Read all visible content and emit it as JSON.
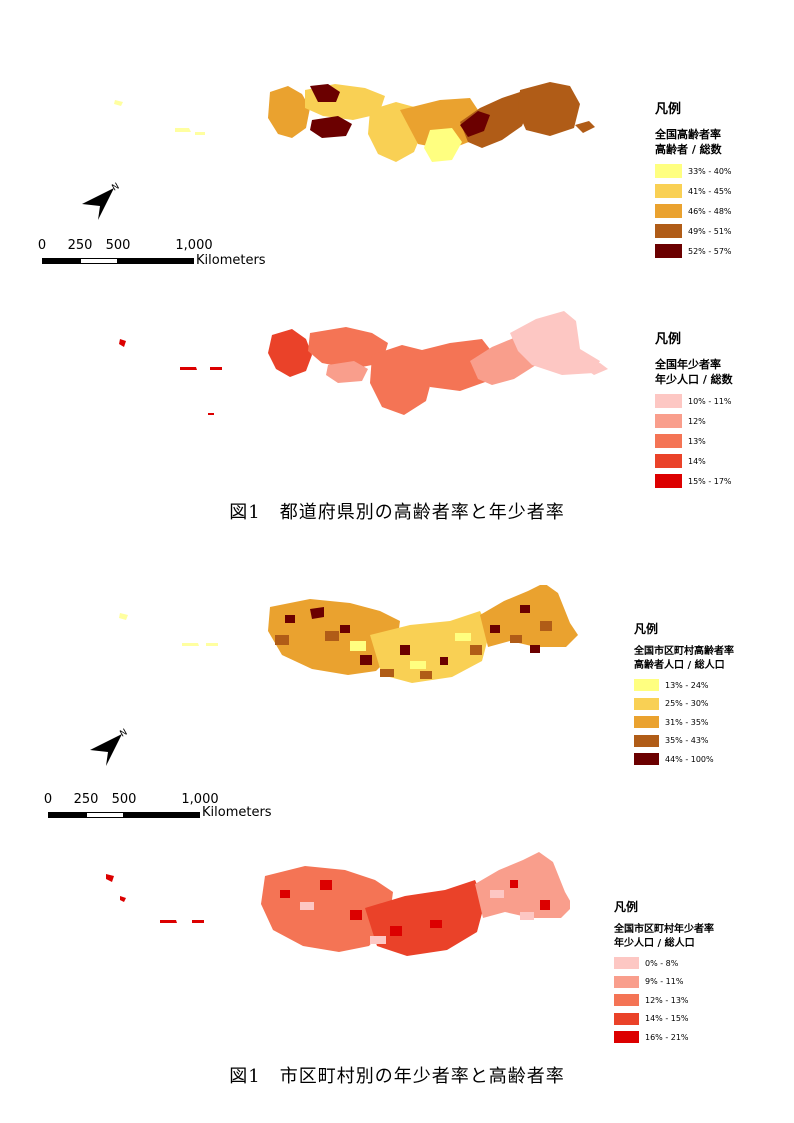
{
  "maps": [
    {
      "legend": {
        "title": "凡例",
        "subtitle_1": "全国高齢者率",
        "subtitle_2": "高齢者 / 総数",
        "classes": [
          {
            "label": "33% - 40%",
            "color": "#ffff80"
          },
          {
            "label": "41% - 45%",
            "color": "#f9d054"
          },
          {
            "label": "46% - 48%",
            "color": "#eaa22f"
          },
          {
            "label": "49% - 51%",
            "color": "#b05c17"
          },
          {
            "label": "52% - 57%",
            "color": "#6b0000"
          }
        ]
      }
    },
    {
      "legend": {
        "title": "凡例",
        "subtitle_1": "全国年少者率",
        "subtitle_2": "年少人口 / 総数",
        "classes": [
          {
            "label": "10% - 11%",
            "color": "#fdc7c3"
          },
          {
            "label": "12%",
            "color": "#f99e8c"
          },
          {
            "label": "13%",
            "color": "#f47455"
          },
          {
            "label": "14%",
            "color": "#ea4229"
          },
          {
            "label": "15% - 17%",
            "color": "#dc0000"
          }
        ]
      }
    },
    {
      "legend": {
        "title": "凡例",
        "subtitle_1": "全国市区町村高齢者率",
        "subtitle_2": "高齢者人口 / 総人口",
        "classes": [
          {
            "label": "13% - 24%",
            "color": "#ffff80"
          },
          {
            "label": "25% - 30%",
            "color": "#f9d054"
          },
          {
            "label": "31% - 35%",
            "color": "#eaa22f"
          },
          {
            "label": "35% - 43%",
            "color": "#b05c17"
          },
          {
            "label": "44% - 100%",
            "color": "#6b0000"
          }
        ]
      }
    },
    {
      "legend": {
        "title": "凡例",
        "subtitle_1": "全国市区町村年少者率",
        "subtitle_2": "年少人口 / 総人口",
        "classes": [
          {
            "label": "0% - 8%",
            "color": "#fdc7c3"
          },
          {
            "label": "9% - 11%",
            "color": "#f99e8c"
          },
          {
            "label": "12% - 13%",
            "color": "#f47455"
          },
          {
            "label": "14% - 15%",
            "color": "#ea4229"
          },
          {
            "label": "16% - 21%",
            "color": "#dc0000"
          }
        ]
      }
    }
  ],
  "scale_bars": [
    {
      "ticks": [
        "0",
        "250",
        "500",
        "1,000"
      ],
      "unit": "Kilometers"
    },
    {
      "ticks": [
        "0",
        "250",
        "500",
        "1,000"
      ],
      "unit": "Kilometers"
    }
  ],
  "north_arrow": {
    "label": "N",
    "icon": "north-arrow-icon"
  },
  "captions": {
    "top": "図1　都道府県別の高齢者率と年少者率",
    "bottom": "図1　市区町村別の年少者率と高齢者率"
  }
}
